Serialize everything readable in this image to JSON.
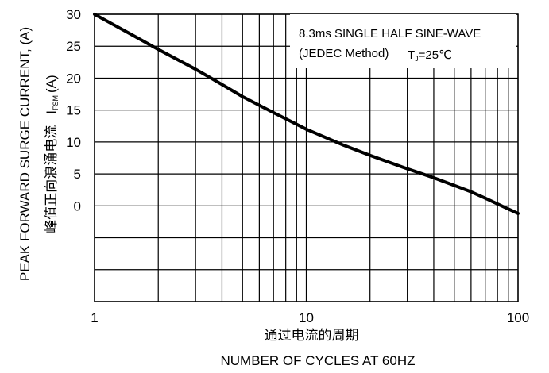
{
  "chart_data": {
    "type": "line",
    "x_scale": "log",
    "xlim": [
      1,
      100
    ],
    "ylim": [
      -15,
      30
    ],
    "grid": true,
    "x_ticks": [
      1,
      2,
      3,
      4,
      5,
      6,
      7,
      8,
      9,
      10,
      20,
      30,
      40,
      50,
      60,
      70,
      80,
      90,
      100
    ],
    "x_tick_labels": [
      {
        "x": 1,
        "label": "1"
      },
      {
        "x": 10,
        "label": "10"
      },
      {
        "x": 100,
        "label": "100"
      }
    ],
    "y_ticks": [
      -15,
      -10,
      -5,
      0,
      5,
      10,
      15,
      20,
      25,
      30
    ],
    "y_tick_labels": [
      {
        "y": 30,
        "label": "30"
      },
      {
        "y": 25,
        "label": "25"
      },
      {
        "y": 20,
        "label": "20"
      },
      {
        "y": 15,
        "label": "15"
      },
      {
        "y": 10,
        "label": "10"
      },
      {
        "y": 5,
        "label": "5"
      },
      {
        "y": 0,
        "label": "0"
      }
    ],
    "xlabel_cn": "通过电流的周期",
    "xlabel": "NUMBER OF CYCLES AT 60HZ",
    "ylabel": "PEAK FORWARD SURGE CURRENT, (A)",
    "ylabel_cn": "峰值正向浪涌电流",
    "ylabel_symbol_main": "I",
    "ylabel_symbol_sub": "FSM",
    "ylabel_unit": "(A)",
    "annotation_line1": "8.3ms SINGLE HALF SINE-WAVE",
    "annotation_line2": "(JEDEC Method)",
    "annotation_temp_main": "T",
    "annotation_temp_sub": "J",
    "annotation_temp_value": "=25℃",
    "series": [
      {
        "x": [
          1,
          1.5,
          2,
          3,
          4,
          5,
          7,
          10,
          15,
          20,
          30,
          40,
          50,
          60,
          70,
          80,
          90,
          100
        ],
        "y": [
          30,
          26.8,
          24.5,
          21.4,
          19.0,
          17.1,
          14.6,
          12.0,
          9.5,
          7.9,
          5.8,
          4.4,
          3.2,
          2.2,
          1.2,
          0.3,
          -0.5,
          -1.2
        ]
      }
    ]
  }
}
